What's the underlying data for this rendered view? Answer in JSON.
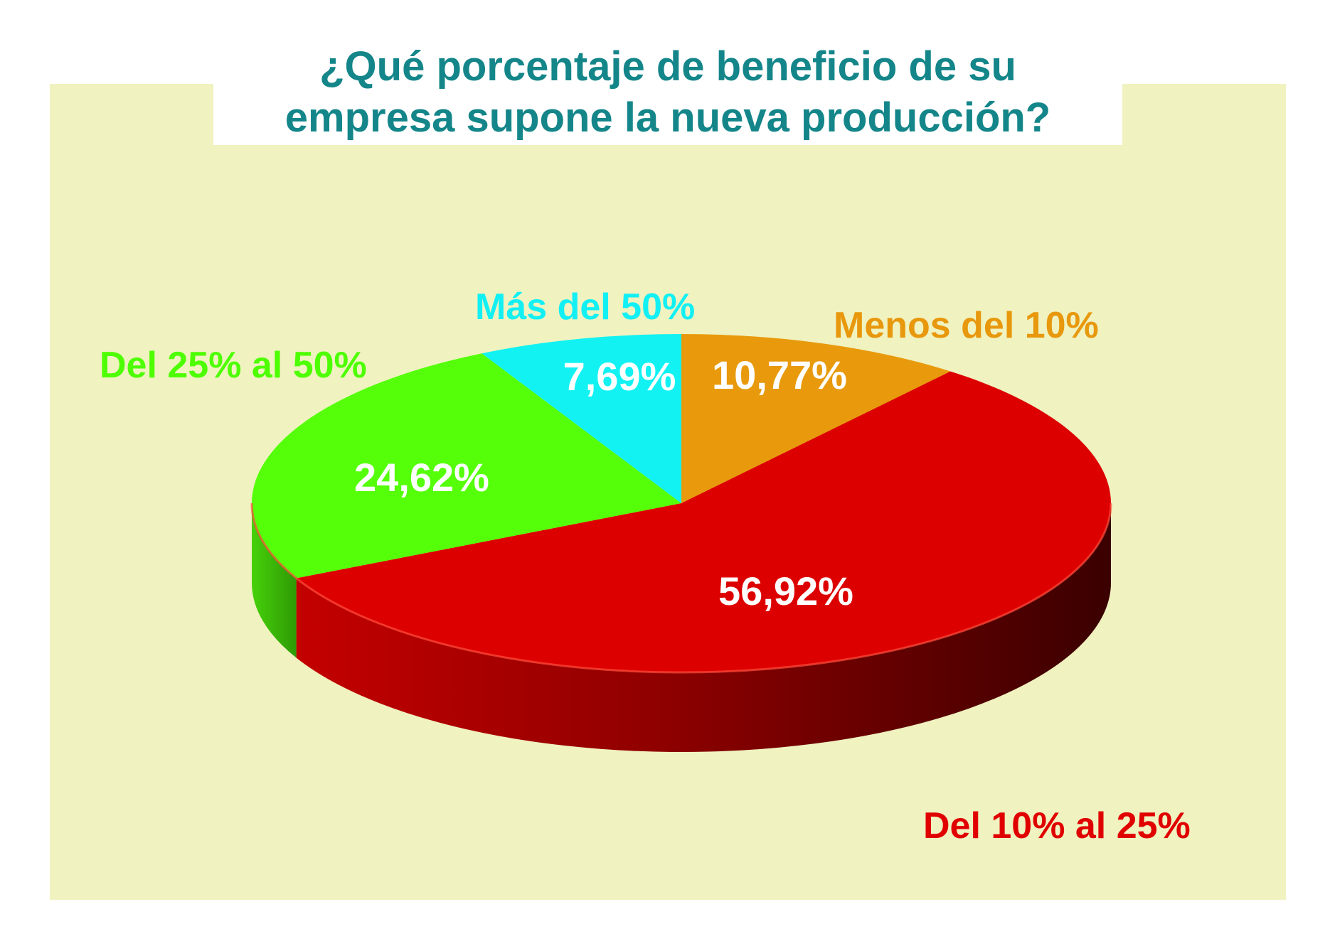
{
  "chart_data": {
    "type": "pie",
    "title": "¿Qué porcentaje de beneficio de su\nempresa supone la nueva producción?",
    "categories": [
      "Menos del 10%",
      "Del 10% al 25%",
      "Del 25% al 50%",
      "Más del 50%"
    ],
    "values": [
      10.77,
      56.92,
      24.62,
      7.69
    ],
    "value_labels": [
      "10,77%",
      "56,92%",
      "24,62%",
      "7,69%"
    ],
    "colors": [
      "#e89a0c",
      "#dd0000",
      "#55ff0a",
      "#12f2f2"
    ],
    "label_colors": [
      "#e8980c",
      "#e00000",
      "#4dff00",
      "#12f0f4"
    ],
    "legend": "none (labels next to slices)",
    "style": "3d"
  },
  "colors": {
    "title": "#14868a",
    "panel_background": "#f0f2c0"
  }
}
